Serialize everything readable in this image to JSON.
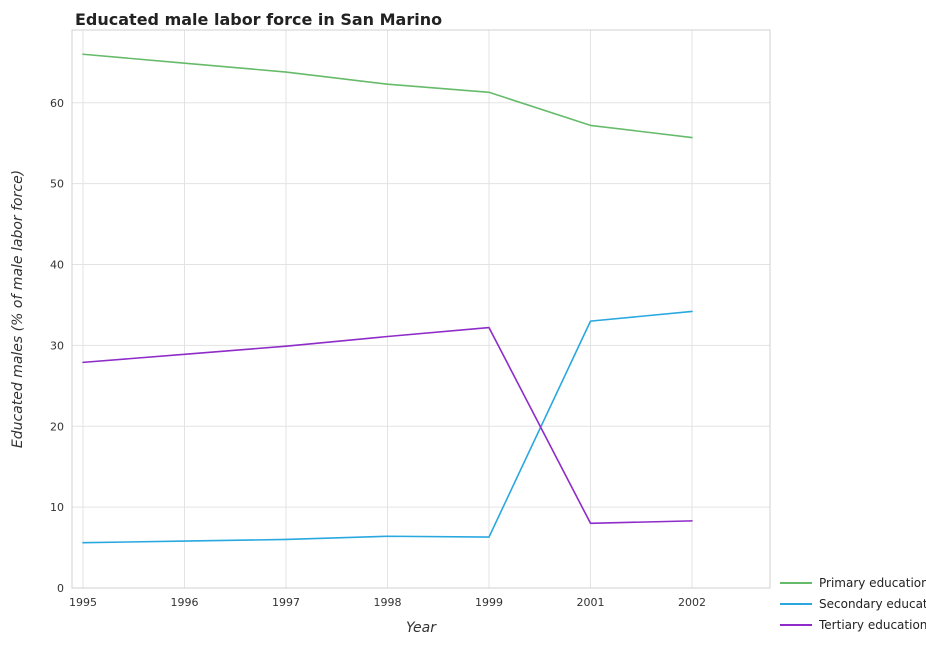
{
  "chart_data": {
    "type": "line",
    "title": "Educated male labor force in San Marino",
    "xlabel": "Year",
    "ylabel": "Educated males (% of male labor force)",
    "categories": [
      "1995",
      "1996",
      "1997",
      "1998",
      "1999",
      "2001",
      "2002"
    ],
    "ylim": [
      0,
      69
    ],
    "yticks": [
      0,
      10,
      20,
      30,
      40,
      50,
      60
    ],
    "grid": true,
    "legend_position": "bottom-right",
    "series": [
      {
        "name": "Primary education",
        "color": "#66bb6a",
        "values": [
          66.0,
          64.9,
          63.8,
          62.3,
          61.3,
          57.2,
          55.7
        ]
      },
      {
        "name": "Secondary education",
        "color": "#29a8e0",
        "values": [
          5.6,
          5.8,
          6.0,
          6.4,
          6.3,
          33.0,
          34.2
        ]
      },
      {
        "name": "Tertiary education",
        "color": "#8e2bc9",
        "values": [
          27.9,
          28.9,
          29.9,
          31.1,
          32.2,
          8.0,
          8.3
        ]
      }
    ]
  }
}
